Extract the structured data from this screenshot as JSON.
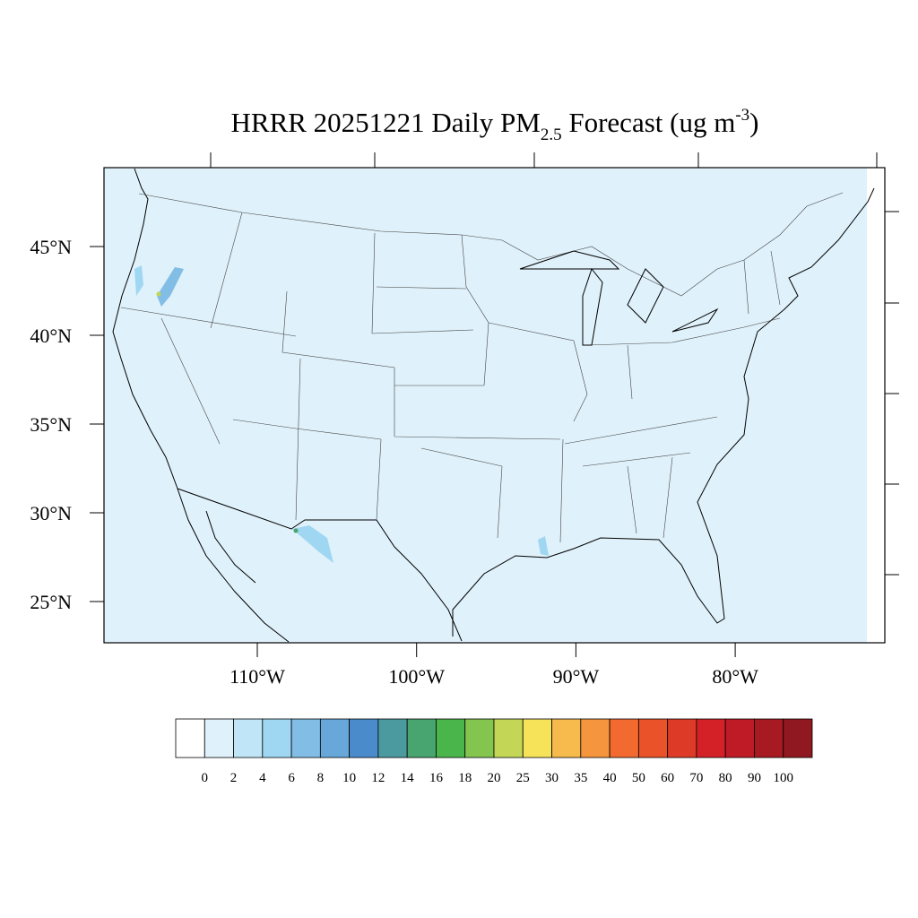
{
  "title": {
    "main": "HRRR 20251221 Daily PM",
    "subscript": "2.5",
    "middle": " Forecast (ug m",
    "superscript": "-3",
    "end": ")"
  },
  "latitude_labels": [
    "45°N",
    "40°N",
    "35°N",
    "30°N",
    "25°N"
  ],
  "longitude_labels": [
    "110°W",
    "100°W",
    "90°W",
    "80°W"
  ],
  "colorbar": {
    "labels": [
      "0",
      "2",
      "4",
      "6",
      "8",
      "10",
      "12",
      "14",
      "16",
      "18",
      "20",
      "25",
      "30",
      "35",
      "40",
      "50",
      "60",
      "70",
      "80",
      "90",
      "100"
    ],
    "colors": [
      "#ffffff",
      "#dff1fa",
      "#bfe5f7",
      "#9fd7f3",
      "#81bde4",
      "#68a7da",
      "#4a8bcb",
      "#4b9aa0",
      "#48a56f",
      "#4ab54a",
      "#84c550",
      "#c3d655",
      "#f7e35a",
      "#f6bb4c",
      "#f5953d",
      "#f26a2f",
      "#ea5229",
      "#dd3a27",
      "#d42027",
      "#bf1b27",
      "#a81a22",
      "#901820"
    ]
  }
}
